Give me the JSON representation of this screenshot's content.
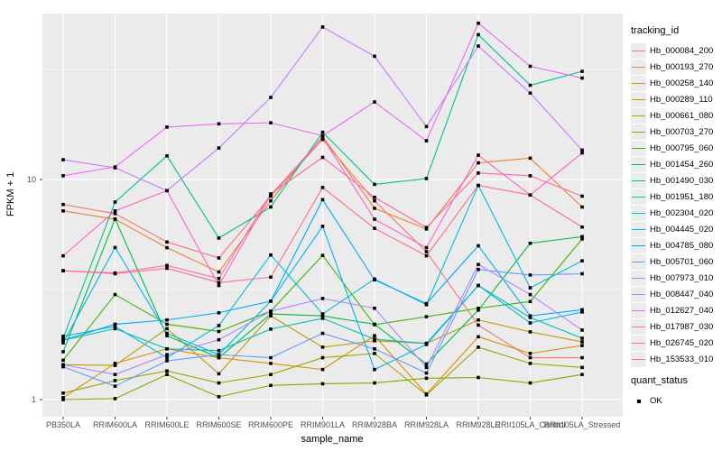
{
  "chart_data": {
    "type": "line",
    "title": "",
    "xlabel": "sample_name",
    "ylabel": "FPKM + 1",
    "y_scale": "log10",
    "y_ticks": [
      "1",
      "10"
    ],
    "y_tick_values": [
      1,
      10
    ],
    "y_minor_values": [
      3.162,
      31.62
    ],
    "ylim": [
      0.84,
      57
    ],
    "grid": "on",
    "legend_position": "right",
    "panel_bg": "#ebebeb",
    "grid_color": "#ffffff",
    "point_color": "#000000",
    "legend_title": "tracking_id",
    "categories": [
      "PB350LA",
      "RRIM600LA",
      "RRIM600LE",
      "RRIM600SE",
      "RRIM600PE",
      "RRIM901LA",
      "RRIM928BA",
      "RRIM928LA",
      "RRIM928LE",
      "RRII105LA_Control",
      "RRII105LA_Stressed"
    ],
    "series": [
      {
        "name": "Hb_000084_200",
        "color": "#F8766D",
        "values": [
          7.7,
          7.0,
          5.2,
          4.4,
          8.4,
          15.2,
          8.0,
          4.7,
          2.18,
          1.55,
          1.55
        ]
      },
      {
        "name": "Hb_000193_270",
        "color": "#EA8331",
        "values": [
          7.2,
          6.6,
          4.9,
          3.8,
          8.0,
          15.7,
          7.4,
          5.96,
          11.9,
          12.5,
          7.5
        ]
      },
      {
        "name": "Hb_000258_140",
        "color": "#D89000",
        "values": [
          1.02,
          1.46,
          1.7,
          1.55,
          1.46,
          1.37,
          1.95,
          1.06,
          1.93,
          1.62,
          1.76
        ]
      },
      {
        "name": "Hb_000289_110",
        "color": "#C09B00",
        "values": [
          1.44,
          1.43,
          2.1,
          1.31,
          2.4,
          1.73,
          1.85,
          1.8,
          2.3,
          2.03,
          1.83
        ]
      },
      {
        "name": "Hb_000661_080",
        "color": "#A3A500",
        "values": [
          1.07,
          1.22,
          1.35,
          1.19,
          1.3,
          1.55,
          1.62,
          1.05,
          1.73,
          1.46,
          1.4
        ]
      },
      {
        "name": "Hb_000703_270",
        "color": "#7CAE00",
        "values": [
          1.0,
          1.01,
          1.3,
          1.03,
          1.16,
          1.18,
          1.19,
          1.25,
          1.26,
          1.19,
          1.3
        ]
      },
      {
        "name": "Hb_000795_060",
        "color": "#39B600",
        "values": [
          1.51,
          3.0,
          2.2,
          2.04,
          2.52,
          4.52,
          2.19,
          2.38,
          2.6,
          2.79,
          5.37
        ]
      },
      {
        "name": "Hb_001454_260",
        "color": "#00BB45",
        "values": [
          1.65,
          6.62,
          1.95,
          1.55,
          2.45,
          2.4,
          2.2,
          1.45,
          2.55,
          5.13,
          5.5
        ]
      },
      {
        "name": "Hb_001490_030",
        "color": "#00C08B",
        "values": [
          1.9,
          7.9,
          12.8,
          5.42,
          7.5,
          16.4,
          9.5,
          10.1,
          45.5,
          26.8,
          31.0
        ]
      },
      {
        "name": "Hb_001951_180",
        "color": "#00C0B8",
        "values": [
          1.86,
          2.1,
          1.7,
          1.67,
          2.09,
          2.34,
          1.88,
          1.8,
          3.3,
          2.36,
          1.9
        ]
      },
      {
        "name": "Hb_002304_020",
        "color": "#00BCD8",
        "values": [
          1.94,
          2.15,
          1.55,
          2.17,
          4.54,
          2.45,
          3.53,
          2.7,
          9.4,
          3.22,
          4.27
        ]
      },
      {
        "name": "Hb_004445_020",
        "color": "#00B4EF",
        "values": [
          1.81,
          4.91,
          2.0,
          1.6,
          2.8,
          6.13,
          1.37,
          1.78,
          3.3,
          2.23,
          2.5
        ]
      },
      {
        "name": "Hb_004785_080",
        "color": "#00A7FF",
        "values": [
          1.86,
          2.2,
          2.3,
          2.48,
          2.8,
          8.1,
          3.5,
          2.73,
          5.0,
          2.4,
          2.56
        ]
      },
      {
        "name": "Hb_005701_060",
        "color": "#619CFF",
        "values": [
          1.41,
          1.15,
          1.5,
          1.6,
          1.55,
          2.0,
          1.7,
          1.32,
          3.9,
          3.68,
          3.73
        ]
      },
      {
        "name": "Hb_007973_010",
        "color": "#AE87FF",
        "values": [
          1.44,
          1.3,
          1.6,
          1.87,
          2.52,
          2.88,
          2.6,
          1.4,
          4.11,
          3.0,
          2.07
        ]
      },
      {
        "name": "Hb_008447_040",
        "color": "#C77CFF",
        "values": [
          12.3,
          11.3,
          8.9,
          13.9,
          23.6,
          49.3,
          36.3,
          17.4,
          40.4,
          24.7,
          13.6
        ]
      },
      {
        "name": "Hb_012627_040",
        "color": "#E76BF3",
        "values": [
          10.4,
          11.4,
          17.3,
          17.9,
          18.1,
          15.8,
          22.5,
          15.0,
          51.3,
          32.7,
          28.9
        ]
      },
      {
        "name": "Hb_017987_030",
        "color": "#FF61C9",
        "values": [
          4.5,
          7.2,
          8.9,
          3.3,
          8.5,
          15.5,
          6.6,
          4.9,
          12.9,
          8.5,
          13.2
        ]
      },
      {
        "name": "Hb_026745_020",
        "color": "#FF689E",
        "values": [
          3.85,
          3.76,
          4.07,
          3.55,
          8.6,
          12.6,
          8.3,
          6.05,
          10.7,
          10.4,
          8.4
        ]
      },
      {
        "name": "Hb_153533_010",
        "color": "#FF6C92",
        "values": [
          3.85,
          3.73,
          3.95,
          3.4,
          3.6,
          9.2,
          6.0,
          4.5,
          9.4,
          8.5,
          6.08
        ]
      }
    ],
    "quant_legend": {
      "title": "quant_status",
      "items": [
        {
          "label": "OK"
        }
      ]
    }
  }
}
